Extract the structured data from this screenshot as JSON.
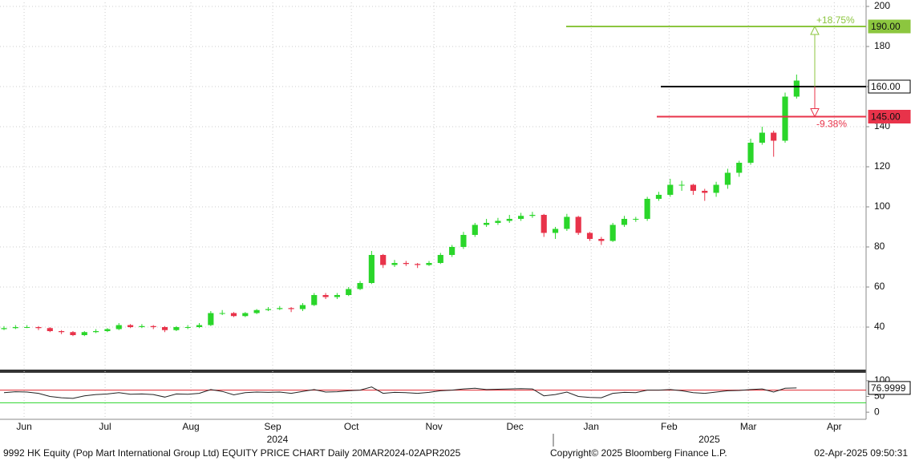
{
  "chart_data": {
    "type": "candlestick",
    "title": "9992 HK Equity (Pop Mart International Group Ltd) EQUITY PRICE CHART  Daily 20MAR2024-02APR2025",
    "copyright": "Copyright© 2025 Bloomberg Finance L.P.",
    "timestamp": "02-Apr-2025 09:50:31",
    "up_color": "#2ad62a",
    "down_color": "#e8334a",
    "open": [
      39,
      39.5,
      40,
      40,
      39.5,
      38,
      37.5,
      36,
      37.5,
      38,
      39,
      41,
      40,
      40.5,
      40,
      38.5,
      40,
      40,
      41,
      47,
      47,
      45.5,
      47,
      48.5,
      49,
      49.5,
      49,
      51,
      56,
      55,
      56,
      59,
      62,
      76,
      71,
      72,
      71.5,
      71,
      72,
      76,
      80,
      86,
      91,
      92,
      93,
      94,
      95.5,
      96,
      87,
      89,
      95,
      87,
      84,
      83,
      91,
      94,
      94,
      104,
      106,
      111,
      111,
      108,
      107,
      111,
      117,
      122,
      132,
      137,
      133,
      155
    ],
    "high": [
      40.5,
      41,
      41,
      40.5,
      40,
      38.5,
      38,
      38,
      39,
      39.5,
      42,
      41.5,
      41.5,
      41,
      40.5,
      40.5,
      41,
      42,
      48,
      48.5,
      47.5,
      47.5,
      49,
      50,
      50.5,
      50,
      52,
      57,
      57,
      57,
      60,
      63,
      78,
      76.5,
      73.5,
      73,
      72,
      73,
      77,
      81,
      87.5,
      92,
      94,
      94.5,
      96,
      97,
      97.5,
      96.5,
      90,
      96.5,
      95.5,
      87.5,
      85,
      92,
      95.5,
      95,
      105,
      107.5,
      114,
      113,
      111.5,
      109,
      112.5,
      119,
      123,
      134,
      140,
      138,
      157,
      166
    ],
    "low": [
      38.5,
      39,
      39.5,
      38.5,
      37.5,
      36.5,
      35.5,
      35.5,
      37,
      37.5,
      38.5,
      39.5,
      39.5,
      39,
      37.5,
      38,
      39,
      39.5,
      40.5,
      46,
      45,
      45,
      46.5,
      48,
      48.5,
      47.5,
      48,
      50.5,
      54,
      54,
      55.5,
      58.5,
      61.5,
      69.5,
      70,
      70.5,
      69.5,
      70.5,
      71.5,
      75,
      79,
      85,
      90,
      91,
      92,
      93,
      94.5,
      85,
      84,
      88,
      86,
      83,
      81,
      82.5,
      90,
      92.5,
      93,
      103,
      105,
      108,
      106,
      103,
      105,
      109,
      115,
      121,
      131,
      125,
      132,
      154
    ],
    "close": [
      39.5,
      40,
      40,
      39.5,
      38,
      37.5,
      36,
      37.5,
      38,
      39,
      41,
      40,
      40.5,
      40,
      38.5,
      40,
      40,
      41,
      47,
      47,
      45.5,
      47,
      48.5,
      49,
      49.5,
      49,
      51,
      56,
      55,
      56,
      59,
      62,
      76,
      71,
      72,
      71.5,
      71,
      72,
      76,
      80,
      86,
      91,
      92,
      93,
      94,
      95.5,
      96,
      87,
      89,
      95,
      87,
      84,
      83,
      91,
      94,
      94,
      104,
      106,
      111,
      111,
      108,
      107,
      111,
      117,
      122,
      132,
      137,
      133,
      155,
      163
    ],
    "xlim": [
      -0.35,
      75.05
    ],
    "xticks": [
      {
        "value": 1.75,
        "label": "Jun"
      },
      {
        "value": 8.8,
        "label": "Jul"
      },
      {
        "value": 16.27,
        "label": "Aug"
      },
      {
        "value": 23.39,
        "label": "Sep"
      },
      {
        "value": 30.24,
        "label": "Oct"
      },
      {
        "value": 37.43,
        "label": "Nov"
      },
      {
        "value": 44.48,
        "label": "Dec"
      },
      {
        "value": 51.12,
        "label": "Jan"
      },
      {
        "value": 57.9,
        "label": "Feb"
      },
      {
        "value": 64.8,
        "label": "Mar"
      },
      {
        "value": 72.28,
        "label": "Apr"
      }
    ],
    "years": [
      {
        "value": 23.8,
        "label": "2024"
      },
      {
        "value": 61.4,
        "label": "2025"
      }
    ],
    "ylim": [
      19.2,
      202
    ],
    "yticks": [
      40,
      60,
      80,
      100,
      120,
      140,
      160,
      180,
      200
    ],
    "grid": true,
    "levels": [
      {
        "value": 190,
        "label": "190.00",
        "color": "#8cc63f",
        "annotation": "+18.75%"
      },
      {
        "value": 160,
        "label": "160.00",
        "color": "#000000"
      },
      {
        "value": 145,
        "label": "145.00",
        "color": "#e8334a",
        "annotation": "-9.38%"
      }
    ],
    "rsi": {
      "values": [
        62,
        65,
        64,
        60,
        50,
        46,
        44,
        52,
        56,
        58,
        62,
        57,
        58,
        56,
        48,
        58,
        57,
        60,
        72,
        66,
        55,
        62,
        64,
        63,
        64,
        60,
        66,
        72,
        64,
        65,
        68,
        70,
        80,
        60,
        63,
        62,
        60,
        63,
        68,
        70,
        74,
        76,
        72,
        73,
        74,
        75,
        74,
        52,
        56,
        64,
        50,
        47,
        46,
        60,
        63,
        62,
        70,
        70,
        72,
        68,
        62,
        60,
        64,
        68,
        69,
        72,
        74,
        64,
        76,
        77
      ],
      "ylim": [
        -20,
        120
      ],
      "yticks": [
        0,
        50,
        100
      ],
      "bands": [
        {
          "value": 70,
          "color": "#e0262f"
        },
        {
          "value": 30,
          "color": "#2ad62a"
        }
      ],
      "last": 76.9999
    }
  }
}
